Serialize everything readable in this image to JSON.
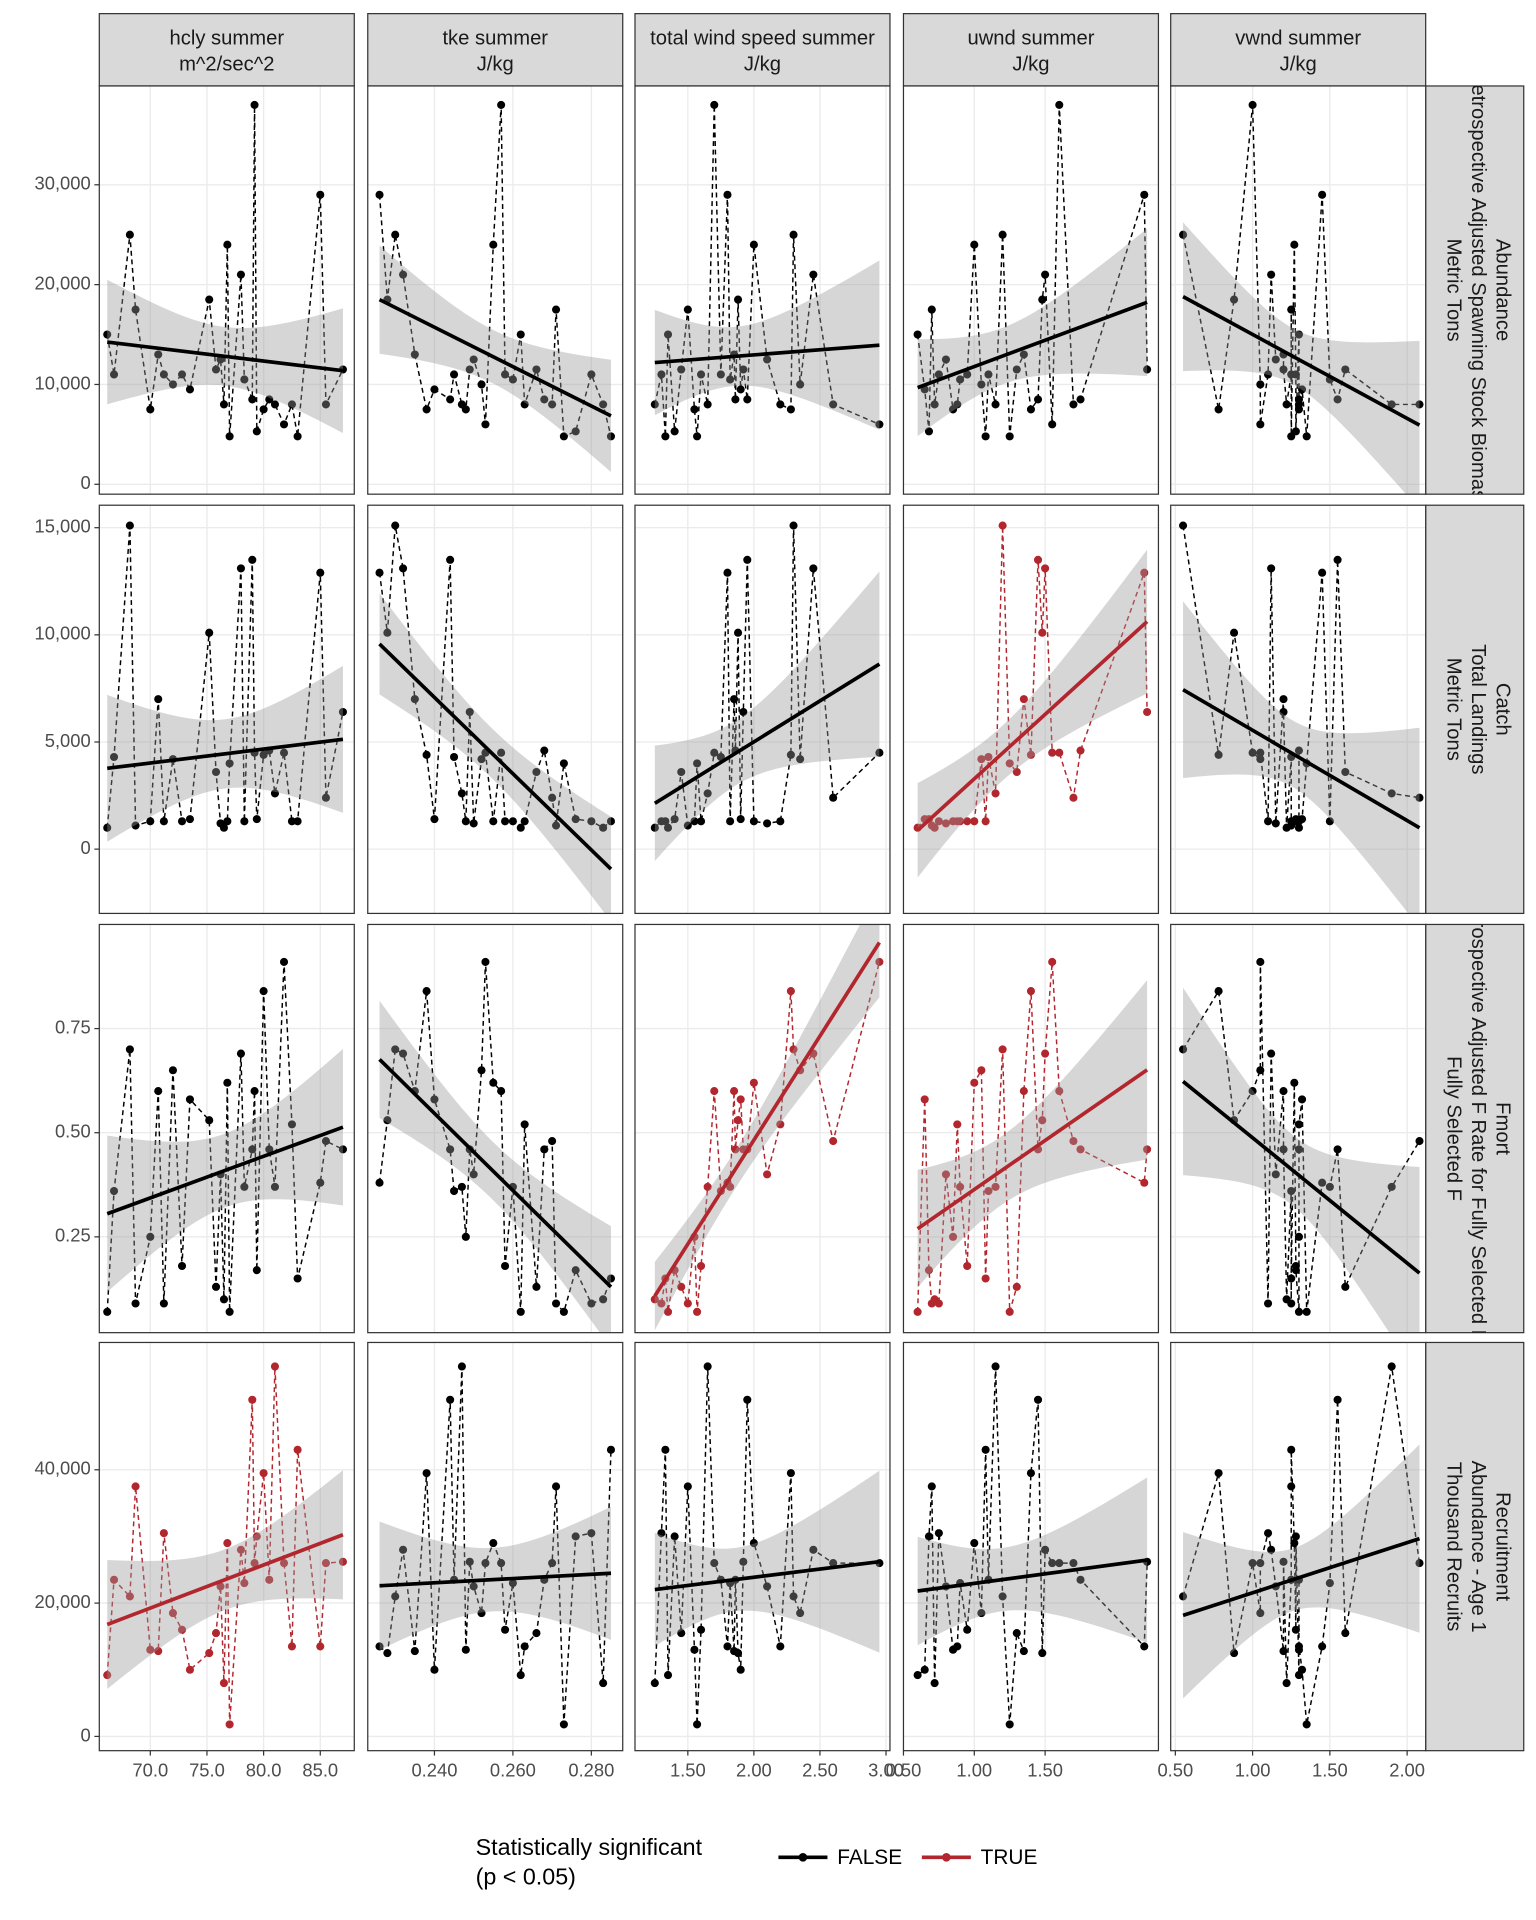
{
  "chart_data": {
    "type": "facet-scatter",
    "grid": true,
    "columns": [
      {
        "title": "hcly summer",
        "unit": "m^2/sec^2",
        "xlim": [
          65.5,
          88.0
        ],
        "xticks": [
          {
            "value": 70,
            "label": "70.0"
          },
          {
            "value": 75,
            "label": "75.0"
          },
          {
            "value": 80,
            "label": "80.0"
          },
          {
            "value": 85,
            "label": "85.0"
          }
        ],
        "x": [
          66.2,
          66.8,
          68.2,
          68.7,
          70.0,
          70.7,
          71.2,
          72.0,
          72.8,
          73.5,
          75.2,
          75.8,
          76.2,
          76.5,
          76.8,
          77.0,
          78.0,
          78.3,
          79.0,
          79.2,
          79.4,
          80.0,
          80.5,
          81.0,
          81.8,
          82.5,
          83.0,
          85.0,
          85.5,
          87.0
        ]
      },
      {
        "title": "tke summer",
        "unit": "J/kg",
        "xlim": [
          0.223,
          0.288
        ],
        "xticks": [
          {
            "value": 0.24,
            "label": "0.240"
          },
          {
            "value": 0.26,
            "label": "0.260"
          },
          {
            "value": 0.28,
            "label": "0.280"
          }
        ],
        "x": [
          0.262,
          0.245,
          0.23,
          0.271,
          0.248,
          0.235,
          0.28,
          0.252,
          0.258,
          0.24,
          0.228,
          0.266,
          0.25,
          0.283,
          0.255,
          0.273,
          0.232,
          0.26,
          0.244,
          0.257,
          0.276,
          0.238,
          0.268,
          0.247,
          0.253,
          0.263,
          0.285,
          0.226,
          0.27,
          0.249
        ]
      },
      {
        "title": "total wind speed summer",
        "unit": "J/kg",
        "xlim": [
          1.1,
          3.03
        ],
        "xticks": [
          {
            "value": 1.5,
            "label": "1.50"
          },
          {
            "value": 2,
            "label": "2.00"
          },
          {
            "value": 2.5,
            "label": "2.50"
          },
          {
            "value": 3,
            "label": "3.00"
          }
        ],
        "x": [
          1.35,
          1.75,
          2.3,
          1.5,
          1.55,
          1.85,
          1.3,
          2.35,
          1.6,
          1.9,
          1.88,
          1.45,
          2.1,
          1.25,
          2.0,
          1.57,
          2.45,
          1.82,
          1.95,
          1.7,
          1.4,
          2.28,
          1.86,
          1.65,
          2.95,
          2.2,
          1.33,
          1.8,
          2.6,
          1.92
        ]
      },
      {
        "title": "uwnd summer",
        "unit": "J/kg",
        "xlim": [
          0.5,
          2.3
        ],
        "xticks": [
          {
            "value": 0.5,
            "label": "0.50"
          },
          {
            "value": 1,
            "label": "1.00"
          },
          {
            "value": 1.5,
            "label": "1.50"
          }
        ],
        "x": [
          0.6,
          1.1,
          1.2,
          0.7,
          0.85,
          1.35,
          0.75,
          1.05,
          0.95,
          0.65,
          1.48,
          1.3,
          0.8,
          0.72,
          1.0,
          1.25,
          1.5,
          0.9,
          1.45,
          1.6,
          0.68,
          1.4,
          1.75,
          1.15,
          1.55,
          0.88,
          1.08,
          2.2,
          1.7,
          2.22
        ]
      },
      {
        "title": "vwnd summer",
        "unit": "J/kg",
        "xlim": [
          0.47,
          2.12
        ],
        "xticks": [
          {
            "value": 0.5,
            "label": "0.50"
          },
          {
            "value": 1,
            "label": "1.00"
          },
          {
            "value": 1.5,
            "label": "1.50"
          },
          {
            "value": 2,
            "label": "2.00"
          }
        ],
        "x": [
          1.3,
          1.25,
          0.55,
          1.25,
          1.3,
          1.2,
          1.1,
          1.05,
          1.28,
          1.32,
          0.88,
          1.6,
          1.15,
          1.22,
          1.27,
          1.35,
          1.12,
          1.5,
          1.55,
          1.0,
          1.28,
          0.78,
          1.3,
          1.9,
          1.05,
          1.3,
          1.25,
          1.45,
          2.08,
          1.2
        ]
      }
    ],
    "rows": [
      {
        "title": "Abundance",
        "subtitle": "Retrospective Adjusted Spawning Stock Biomass",
        "unit": "Metric Tons",
        "ylim": [
          -990,
          39900
        ],
        "yticks": [
          0,
          {
            "value": 10000,
            "label": "10,000"
          },
          {
            "value": 20000,
            "label": "20,000"
          },
          {
            "value": 30000,
            "label": "30,000"
          }
        ],
        "y": [
          15000,
          11000,
          25000,
          17500,
          7500,
          13000,
          11000,
          10000,
          11000,
          9500,
          18500,
          11500,
          12500,
          8000,
          24000,
          4800,
          21000,
          10500,
          8500,
          38000,
          5300,
          7500,
          8500,
          8000,
          6000,
          8000,
          4800,
          29000,
          8000,
          11500
        ]
      },
      {
        "title": "Catch",
        "subtitle": "Total Landings",
        "unit": "Metric Tons",
        "ylim": [
          -3000,
          16050
        ],
        "yticks": [
          0,
          {
            "value": 5000,
            "label": "5,000"
          },
          {
            "value": 10000,
            "label": "10,000"
          },
          {
            "value": 15000,
            "label": "15,000"
          }
        ],
        "y": [
          1000,
          4300,
          15100,
          1100,
          1300,
          7000,
          1300,
          4200,
          1300,
          1400,
          10100,
          3600,
          1200,
          1000,
          1300,
          4000,
          13100,
          1300,
          13500,
          4500,
          1400,
          4400,
          4600,
          2600,
          4500,
          1300,
          1300,
          12900,
          2400,
          6400
        ]
      },
      {
        "title": "Fmort",
        "subtitle": "Retrospective Adjusted F Rate for Fully Selected Fish",
        "unit": "Fully Selected F",
        "ylim": [
          0.02,
          1.0
        ],
        "yticks": [
          0.25,
          {
            "value": 0.5,
            "label": "0.50"
          },
          0.75
        ],
        "y": [
          0.07,
          0.36,
          0.7,
          0.09,
          0.25,
          0.6,
          0.09,
          0.65,
          0.18,
          0.58,
          0.53,
          0.13,
          0.4,
          0.1,
          0.62,
          0.07,
          0.69,
          0.37,
          0.46,
          0.6,
          0.17,
          0.84,
          0.46,
          0.37,
          0.91,
          0.52,
          0.15,
          0.38,
          0.48,
          0.46
        ]
      },
      {
        "title": "Recruitment",
        "subtitle": "Abundance - Age 1",
        "unit": "Thousand Recruits",
        "ylim": [
          -2140,
          59100
        ],
        "yticks": [
          0,
          {
            "value": 20000,
            "label": "20,000"
          },
          {
            "value": 40000,
            "label": "40,000"
          }
        ],
        "y": [
          9200,
          23500,
          21000,
          37500,
          13000,
          12800,
          30500,
          18500,
          16000,
          10000,
          12500,
          15500,
          22500,
          8000,
          29000,
          1800,
          28000,
          23000,
          50500,
          26000,
          30000,
          39500,
          23500,
          55500,
          26000,
          13500,
          43000,
          13500,
          26000,
          26200
        ]
      }
    ],
    "significant": [
      [
        false,
        false,
        false,
        false,
        false
      ],
      [
        false,
        false,
        false,
        true,
        false
      ],
      [
        false,
        false,
        true,
        true,
        false
      ],
      [
        true,
        false,
        false,
        false,
        false
      ]
    ],
    "legend": {
      "title": "Statistically significant",
      "subtitle": "(p < 0.05)",
      "series": [
        {
          "name": "FALSE",
          "value": false,
          "color": "#000000"
        },
        {
          "name": "TRUE",
          "value": true,
          "color": "#b2262e"
        }
      ]
    }
  }
}
